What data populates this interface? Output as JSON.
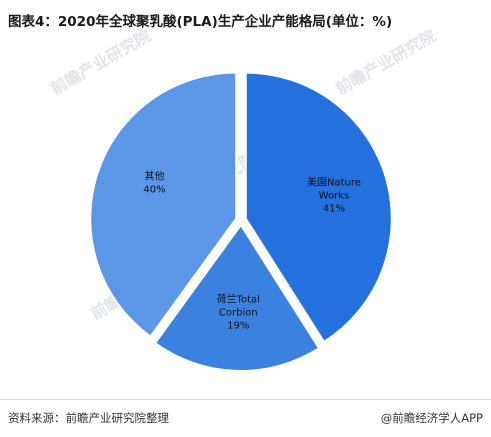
{
  "title": "图表4：2020年全球聚乳酸(PLA)生产企业产能格局(单位：%)",
  "source": "资料来源：前瞻产业研究院整理",
  "brand": "@前瞻经济学人APP",
  "watermark": "前瞻产业研究院",
  "colors": {
    "nature_works": "#2470dc",
    "total_corbion": "#3b82e0",
    "others": "#5b97e6",
    "separator": "#ffffff",
    "watermark": "#c8d0d8"
  },
  "chart_data": {
    "type": "pie",
    "title": "图表4：2020年全球聚乳酸(PLA)生产企业产能格局(单位：%)",
    "slices": [
      {
        "label_lines": [
          "美国Nature",
          "Works",
          "41%"
        ],
        "name": "美国Nature Works",
        "value": 41,
        "color": "#2470dc"
      },
      {
        "label_lines": [
          "荷兰Total",
          "Corbion",
          "19%"
        ],
        "name": "荷兰Total Corbion",
        "value": 19,
        "color": "#3b82e0"
      },
      {
        "label_lines": [
          "其他",
          "40%"
        ],
        "name": "其他",
        "value": 40,
        "color": "#5b97e6"
      }
    ],
    "start_angle_deg": 0,
    "direction": "clockwise",
    "legend": "none"
  }
}
